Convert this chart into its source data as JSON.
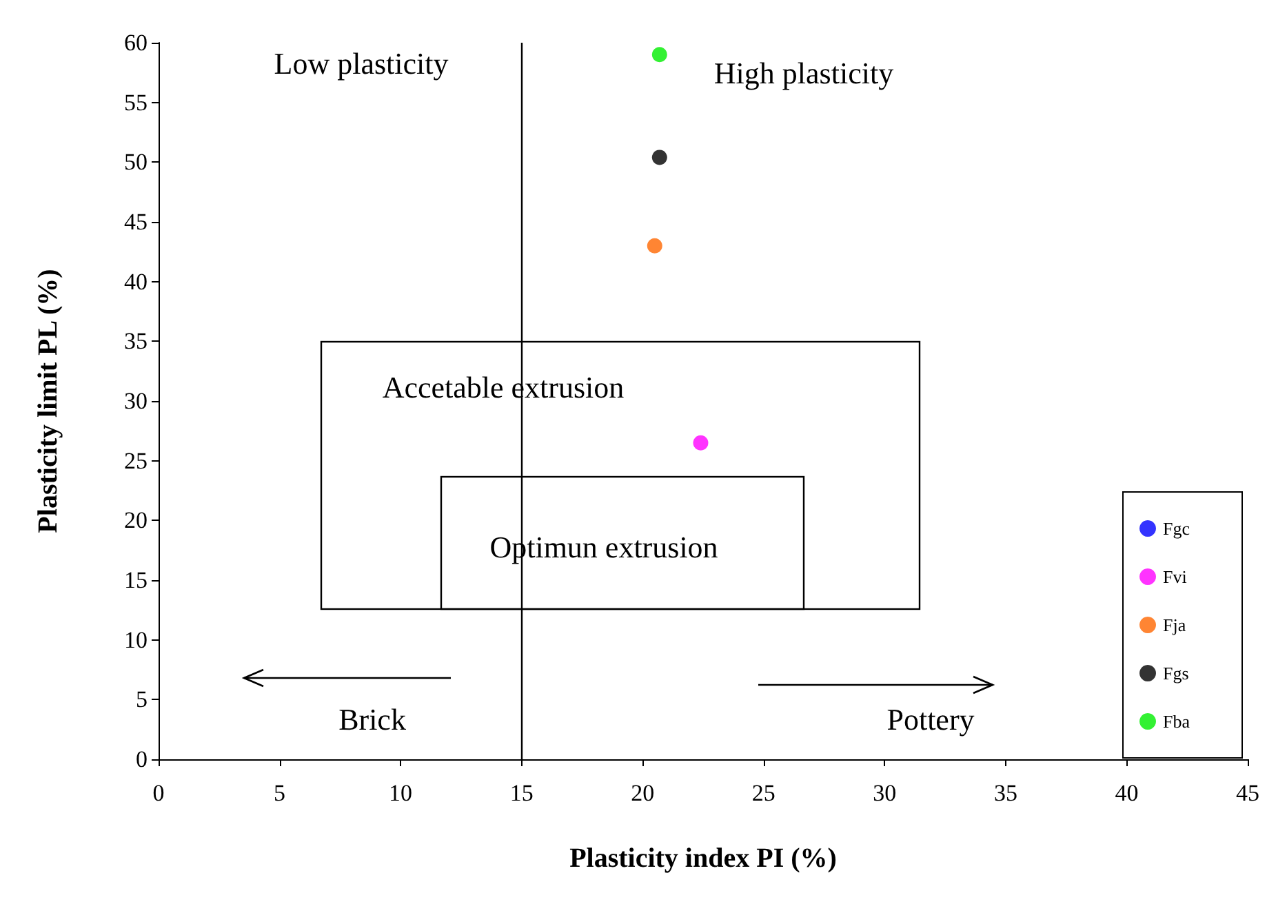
{
  "chart_data": {
    "type": "scatter",
    "xlabel": "Plasticity index PI (%)",
    "ylabel": "Plasticity limit PL (%)",
    "xlim": [
      0,
      45
    ],
    "xticks": [
      0,
      5,
      10,
      15,
      20,
      25,
      30,
      35,
      40,
      45
    ],
    "ylim": [
      0,
      60
    ],
    "yticks": [
      0,
      5,
      10,
      15,
      20,
      25,
      30,
      35,
      40,
      45,
      50,
      55,
      60
    ],
    "grid": false,
    "legend": "bottom right",
    "marker": "circle",
    "series": [
      {
        "name": "Fgc",
        "color": "#0000ff",
        "x": [
          null
        ],
        "values": [
          null
        ]
      },
      {
        "name": "Fvi",
        "color": "#ff00ff",
        "x": [
          22.4
        ],
        "values": [
          26.5
        ]
      },
      {
        "name": "Fja",
        "color": "#ff6600",
        "x": [
          20.5
        ],
        "values": [
          43.0
        ]
      },
      {
        "name": "Fgs",
        "color": "#000000",
        "x": [
          20.7
        ],
        "values": [
          50.4
        ]
      },
      {
        "name": "Fba",
        "color": "#00ee00",
        "x": [
          20.7
        ],
        "values": [
          59.0
        ]
      }
    ],
    "ref_lines": [
      {
        "axis": "x",
        "value": 15,
        "color": "#000000"
      }
    ],
    "annotations": [
      "Low plasticity",
      "High plasticity",
      "Accetable extrusion",
      "Optimun extrusion",
      "Brick",
      "Pottery"
    ]
  }
}
